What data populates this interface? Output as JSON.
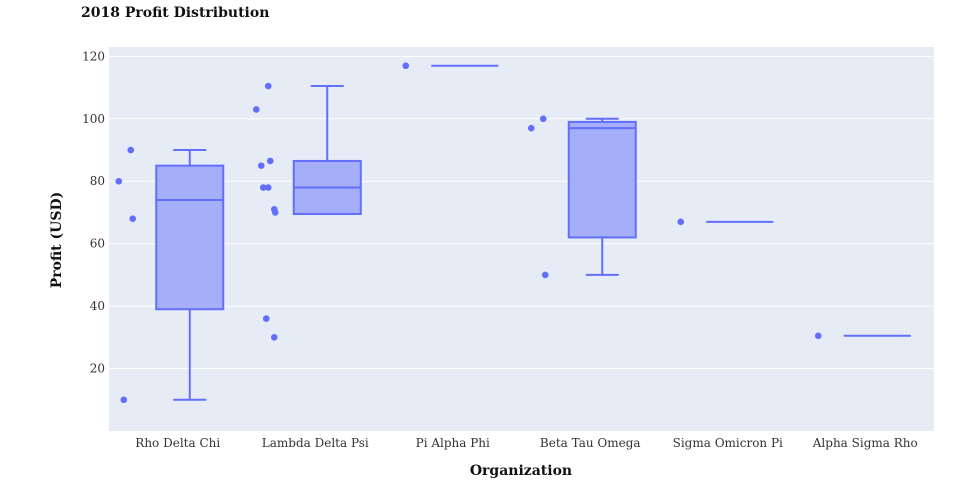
{
  "chart_data": {
    "type": "box",
    "title": "2018 Profit Distribution",
    "xlabel": "Organization",
    "ylabel": "Profit (USD)",
    "ylim": [
      0,
      123
    ],
    "yticks": [
      20,
      40,
      60,
      80,
      100,
      120
    ],
    "grid": true,
    "colors": {
      "box_fill": "#a4aef9",
      "box_line": "#636efa",
      "plot_bg": "#e5ecf6",
      "grid": "#ffffff"
    },
    "categories": [
      "Rho Delta Chi",
      "Lambda Delta Psi",
      "Pi Alpha Phi",
      "Beta Tau Omega",
      "Sigma Omicron Pi",
      "Alpha Sigma Rho"
    ],
    "boxes": [
      {
        "category": "Rho Delta Chi",
        "whisker_low": 10,
        "q1": 39,
        "median": 74,
        "q3": 85,
        "whisker_high": 90,
        "points": [
          90,
          80,
          68,
          10
        ]
      },
      {
        "category": "Lambda Delta Psi",
        "whisker_low": 69.5,
        "q1": 69.5,
        "median": 78,
        "q3": 86.5,
        "whisker_high": 110.5,
        "points": [
          110.5,
          103,
          86.5,
          85,
          78,
          78,
          71,
          70,
          36,
          30
        ]
      },
      {
        "category": "Pi Alpha Phi",
        "whisker_low": 117,
        "q1": 117,
        "median": 117,
        "q3": 117,
        "whisker_high": 117,
        "points": [
          117
        ]
      },
      {
        "category": "Beta Tau Omega",
        "whisker_low": 50,
        "q1": 62,
        "median": 97,
        "q3": 99,
        "whisker_high": 100,
        "points": [
          100,
          97,
          50
        ]
      },
      {
        "category": "Sigma Omicron Pi",
        "whisker_low": 67,
        "q1": 67,
        "median": 67,
        "q3": 67,
        "whisker_high": 67,
        "points": [
          67
        ]
      },
      {
        "category": "Alpha Sigma Rho",
        "whisker_low": 30.5,
        "q1": 30.5,
        "median": 30.5,
        "q3": 30.5,
        "whisker_high": 30.5,
        "points": [
          30.5
        ]
      }
    ]
  }
}
